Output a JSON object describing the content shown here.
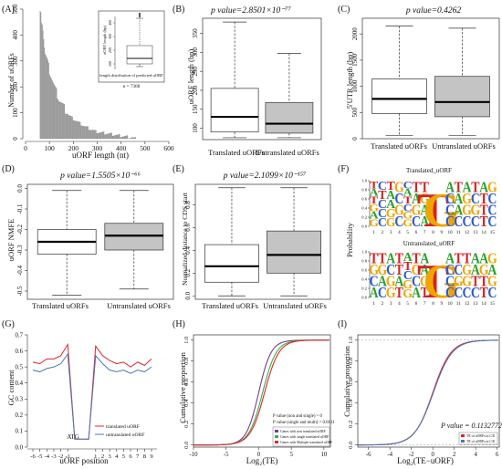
{
  "panels": {
    "A": {
      "letter": "(A)",
      "xlabel": "uORF length (nt)",
      "ylabel": "Number of uORFs",
      "xticks": [
        "0",
        "100",
        "200",
        "300",
        "400",
        "500",
        "600"
      ],
      "yticks": [
        "0",
        "100",
        "200",
        "300",
        "400",
        "500"
      ],
      "inset": {
        "ylabel": "uORF length (bp)",
        "yticks": [
          "100",
          "200",
          "300",
          "400"
        ],
        "caption": "length distribution of predicted uORF",
        "n": "n = 7368"
      }
    },
    "B": {
      "letter": "(B)",
      "title": "p value=2.8501×10⁻⁷⁷",
      "ylabel": "uORF length (bp)",
      "yticks": [
        "100",
        "150",
        "200",
        "250",
        "300",
        "350"
      ],
      "groups": [
        "Translated uORFs",
        "Untranslated uORFs"
      ]
    },
    "C": {
      "letter": "(C)",
      "title": "p value=0.4262",
      "ylabel": "5'UTR length (bp)",
      "yticks": [
        "0",
        "500",
        "1000",
        "1500",
        "2000"
      ],
      "groups": [
        "Translated uORFs",
        "Untranslated uORFs"
      ]
    },
    "D": {
      "letter": "(D)",
      "title": "p value=1.5505×10⁻⁶⁶",
      "ylabel": "uORF NMFE",
      "yticks": [
        "-0.5",
        "-0.4",
        "-0.3",
        "-0.2",
        "-0.1",
        "0.0"
      ],
      "groups": [
        "Translated uORFs",
        "Untranslated uORFs"
      ]
    },
    "E": {
      "letter": "(E)",
      "title": "p value=2.1099×10⁻¹⁵⁷",
      "ylabel": "Normalized distance to CDS start",
      "yticks": [
        "0.0",
        "0.2",
        "0.4",
        "0.6",
        "0.8"
      ],
      "groups": [
        "Translated uORFs",
        "Untranslated uORFs"
      ]
    },
    "F": {
      "letter": "(F)",
      "ylabel": "Probability",
      "top_title": "Translated_uORF",
      "bottom_title": "Untranslated_uORF",
      "yticks": [
        "0.0",
        "0.2",
        "0.4",
        "0.6",
        "0.8",
        "1.0"
      ],
      "positions": [
        "1",
        "2",
        "3",
        "4",
        "5",
        "6",
        "7",
        "8",
        "9",
        "10",
        "11",
        "12",
        "13",
        "14",
        "15"
      ],
      "top_columns": [
        "GAGTAT",
        "CCCTC",
        "GGAAT",
        "CGCG",
        "GGCTAC",
        "CGAT",
        "AAGT",
        "TTTT",
        "GGGG",
        "CCCA",
        "CAAT",
        "CGGA",
        "CGCT",
        "TTTA",
        "CCCG"
      ],
      "bottom_columns": [
        "ACGT",
        "CAGT",
        "GGCA",
        "TATT",
        "GGCTA",
        "ACGT",
        "TGAA",
        "TTTT",
        "GGGG",
        "CCCA",
        "CGCT",
        "CGGT",
        "CTAA",
        "TTGA",
        "CGAG"
      ]
    },
    "G": {
      "letter": "(G)",
      "xlabel": "uORF position",
      "ylabel": "GC content",
      "annotation": "ATG",
      "xticks": [
        "-6",
        "-5",
        "-4",
        "-3",
        "-2",
        "-1",
        "1",
        "2",
        "3",
        "4",
        "5",
        "6",
        "7",
        "8",
        "9"
      ],
      "yticks": [
        "0.0",
        "0.1",
        "0.2",
        "0.3",
        "0.4",
        "0.5",
        "0.6",
        "0.7"
      ],
      "legend": [
        "translated uORF",
        "untranslated uORF"
      ]
    },
    "H": {
      "letter": "(H)",
      "xlabel": "Log₂(TE)",
      "ylabel": "Cumulative proportion",
      "xticks": [
        "-10",
        "-5",
        "0",
        "5",
        "10"
      ],
      "yticks": [
        "0.0",
        "0.2",
        "0.4",
        "0.6",
        "0.8",
        "1.0"
      ],
      "legend": [
        "Genes with non translated uORF",
        "Genes with single translated uORF",
        "Genes with Multiple translated uORF"
      ],
      "pvalues": [
        "P value (non and single) = 0",
        "P value (single and multi) = 0.0131"
      ]
    },
    "I": {
      "letter": "(I)",
      "xlabel": "Log₂(TE−uORF)",
      "ylabel": "Cumulative proportion",
      "xticks": [
        "-6",
        "-4",
        "-2",
        "0",
        "2",
        "4",
        "6"
      ],
      "yticks": [
        "0.0",
        "0.2",
        "0.4",
        "0.6",
        "0.8",
        "1.0"
      ],
      "pvalue": "P value = 0.1132772",
      "legend": [
        "TE of uORFs in C/E",
        "TE of uORFs in C/E"
      ]
    }
  },
  "colors": {
    "bar": "#9a9a9a",
    "box_light": "#ffffff",
    "box_dark": "#c4c4c4",
    "red": "#e0262b",
    "blue": "#4a78b5",
    "green": "#33b24a",
    "purple": "#7a3b93",
    "logoA": "#2aa02a",
    "logoC": "#2d5bd1",
    "logoG": "#f0a400",
    "logoT": "#d62222"
  },
  "chart_data": [
    {
      "panel": "A",
      "type": "bar",
      "title": "",
      "xlabel": "uORF length (nt)",
      "ylabel": "Number of uORFs",
      "xlim": [
        0,
        600
      ],
      "ylim": [
        0,
        500
      ],
      "bins_start": 60,
      "bin_width": 3,
      "values_note": "histogram peaks near 70 nt with ~490 uORFs and decays to ~0 by 450 nt",
      "x": [
        60,
        70,
        80,
        90,
        100,
        120,
        140,
        160,
        180,
        200,
        250,
        300,
        350,
        400,
        450
      ],
      "values": [
        480,
        450,
        330,
        300,
        260,
        200,
        150,
        120,
        90,
        75,
        45,
        25,
        18,
        10,
        3
      ]
    },
    {
      "panel": "B",
      "type": "box",
      "groups": [
        "Translated uORFs",
        "Untranslated uORFs"
      ],
      "ylim": [
        70,
        390
      ],
      "boxes": [
        {
          "whisker_low": 75,
          "q1": 90,
          "median": 130,
          "q3": 205,
          "whisker_high": 380
        },
        {
          "whisker_low": 75,
          "q1": 87,
          "median": 112,
          "q3": 168,
          "whisker_high": 297
        }
      ]
    },
    {
      "panel": "C",
      "type": "box",
      "groups": [
        "Translated uORFs",
        "Untranslated uORFs"
      ],
      "ylim": [
        0,
        2300
      ],
      "boxes": [
        {
          "whisker_low": 60,
          "q1": 480,
          "median": 760,
          "q3": 1140,
          "whisker_high": 2150
        },
        {
          "whisker_low": 60,
          "q1": 420,
          "median": 700,
          "q3": 1190,
          "whisker_high": 2110
        }
      ]
    },
    {
      "panel": "D",
      "type": "box",
      "groups": [
        "Translated uORFs",
        "Untranslated uORFs"
      ],
      "ylim": [
        -0.54,
        0.02
      ],
      "boxes": [
        {
          "whisker_low": -0.52,
          "q1": -0.32,
          "median": -0.26,
          "q3": -0.2,
          "whisker_high": -0.01
        },
        {
          "whisker_low": -0.49,
          "q1": -0.3,
          "median": -0.23,
          "q3": -0.17,
          "whisker_high": -0.01
        }
      ]
    },
    {
      "panel": "E",
      "type": "box",
      "groups": [
        "Translated uORFs",
        "Untranslated uORFs"
      ],
      "ylim": [
        -0.03,
        0.98
      ],
      "boxes": [
        {
          "whisker_low": 0.0,
          "q1": 0.12,
          "median": 0.26,
          "q3": 0.45,
          "whisker_high": 0.95
        },
        {
          "whisker_low": 0.0,
          "q1": 0.2,
          "median": 0.36,
          "q3": 0.57,
          "whisker_high": 0.95
        }
      ]
    },
    {
      "panel": "G",
      "type": "line",
      "xlabel": "uORF position",
      "ylabel": "GC content",
      "x": [
        "-6",
        "-5",
        "-4",
        "-3",
        "-2",
        "-1",
        "A",
        "T",
        "G",
        "1",
        "2",
        "3",
        "4",
        "5",
        "6",
        "7",
        "8",
        "9"
      ],
      "ylim": [
        0.0,
        0.7
      ],
      "series": [
        {
          "name": "translated uORF",
          "color": "red",
          "values": [
            0.53,
            0.52,
            0.55,
            0.55,
            0.57,
            0.64,
            0.05,
            0.05,
            0.05,
            0.63,
            0.57,
            0.54,
            0.52,
            0.53,
            0.5,
            0.53,
            0.51,
            0.55
          ]
        },
        {
          "name": "untranslated uORF",
          "color": "blue",
          "values": [
            0.48,
            0.47,
            0.49,
            0.5,
            0.52,
            0.58,
            0.05,
            0.05,
            0.05,
            0.57,
            0.52,
            0.48,
            0.47,
            0.48,
            0.46,
            0.48,
            0.47,
            0.5
          ]
        }
      ]
    },
    {
      "panel": "H",
      "type": "line",
      "xlabel": "Log2(TE)",
      "ylabel": "Cumulative proportion",
      "xlim": [
        -10,
        11
      ],
      "ylim": [
        0,
        1
      ],
      "series": [
        {
          "name": "Genes with non translated uORF",
          "color": "purple",
          "mu": 0.0,
          "s": 0.95
        },
        {
          "name": "Genes with single translated uORF",
          "color": "green",
          "mu": 0.6,
          "s": 1.05
        },
        {
          "name": "Genes with Multiple translated uORF",
          "color": "red",
          "mu": 0.9,
          "s": 1.1
        }
      ]
    },
    {
      "panel": "I",
      "type": "line",
      "xlabel": "Log2(TE-uORF)",
      "ylabel": "Cumulative proportion",
      "xlim": [
        -7,
        6.2
      ],
      "ylim": [
        0,
        1
      ],
      "series": [
        {
          "name": "TE of uORFs in C/E",
          "color": "red",
          "mu": 0.0,
          "s": 0.85
        },
        {
          "name": "TE of uORFs in C/E",
          "color": "blue",
          "mu": 0.05,
          "s": 0.88
        }
      ]
    }
  ]
}
